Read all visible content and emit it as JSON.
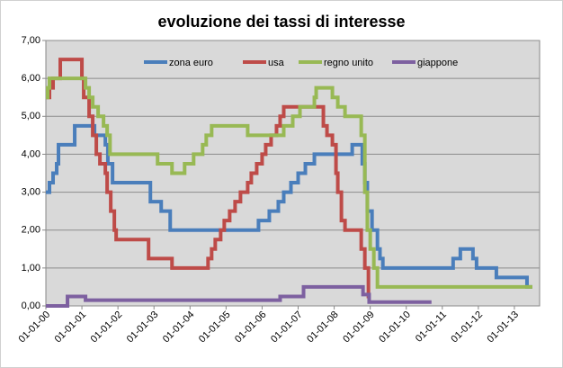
{
  "chart_data": {
    "type": "step-line",
    "title": "evoluzione dei tassi di interesse",
    "xlim": [
      2000,
      2013.7
    ],
    "ylim": [
      0,
      7
    ],
    "xticks": [
      {
        "value": 2000,
        "label": "01-01-00"
      },
      {
        "value": 2001,
        "label": "01-01-01"
      },
      {
        "value": 2002,
        "label": "01-01-02"
      },
      {
        "value": 2003,
        "label": "01-01-03"
      },
      {
        "value": 2004,
        "label": "01-01-04"
      },
      {
        "value": 2005,
        "label": "01-01-05"
      },
      {
        "value": 2006,
        "label": "01-01-06"
      },
      {
        "value": 2007,
        "label": "01-01-07"
      },
      {
        "value": 2008,
        "label": "01-01-08"
      },
      {
        "value": 2009,
        "label": "01-01-09"
      },
      {
        "value": 2010,
        "label": "01-01-10"
      },
      {
        "value": 2011,
        "label": "01-01-11"
      },
      {
        "value": 2012,
        "label": "01-01-12"
      },
      {
        "value": 2013,
        "label": "01-01-13"
      }
    ],
    "yticks": [
      {
        "value": 0,
        "label": "0,00"
      },
      {
        "value": 1,
        "label": "1,00"
      },
      {
        "value": 2,
        "label": "2,00"
      },
      {
        "value": 3,
        "label": "3,00"
      },
      {
        "value": 4,
        "label": "4,00"
      },
      {
        "value": 5,
        "label": "5,00"
      },
      {
        "value": 6,
        "label": "6,00"
      },
      {
        "value": 7,
        "label": "7,00"
      }
    ],
    "grid": true,
    "legend": "top",
    "series": [
      {
        "name": "zona euro",
        "color": "#4a7ebb",
        "x": [
          2000.0,
          2000.1,
          2000.2,
          2000.3,
          2000.35,
          2000.8,
          2001.35,
          2001.65,
          2001.72,
          2001.85,
          2002.9,
          2003.2,
          2003.45,
          2005.9,
          2006.2,
          2006.45,
          2006.6,
          2006.8,
          2007.0,
          2007.2,
          2007.45,
          2008.5,
          2008.78,
          2008.85,
          2008.92,
          2009.05,
          2009.2,
          2009.27,
          2009.35,
          2011.3,
          2011.5,
          2011.85,
          2011.95,
          2012.5,
          2013.35,
          2013.5
        ],
        "values": [
          3.0,
          3.25,
          3.5,
          3.75,
          4.25,
          4.75,
          4.5,
          4.25,
          3.75,
          3.25,
          2.75,
          2.5,
          2.0,
          2.25,
          2.5,
          2.75,
          3.0,
          3.25,
          3.5,
          3.75,
          4.0,
          4.25,
          3.75,
          3.25,
          2.5,
          2.0,
          1.5,
          1.25,
          1.0,
          1.25,
          1.5,
          1.25,
          1.0,
          0.75,
          0.5,
          0.5
        ]
      },
      {
        "name": "usa",
        "color": "#be4b48",
        "x": [
          2000.0,
          2000.1,
          2000.2,
          2000.4,
          2001.0,
          2001.05,
          2001.2,
          2001.3,
          2001.4,
          2001.5,
          2001.65,
          2001.7,
          2001.8,
          2001.9,
          2001.95,
          2002.85,
          2003.5,
          2004.5,
          2004.6,
          2004.7,
          2004.85,
          2004.95,
          2005.1,
          2005.25,
          2005.4,
          2005.6,
          2005.7,
          2005.85,
          2006.0,
          2006.1,
          2006.25,
          2006.4,
          2006.5,
          2006.6,
          2007.7,
          2007.8,
          2007.95,
          2008.05,
          2008.1,
          2008.2,
          2008.3,
          2008.75,
          2008.85,
          2008.95,
          2009.0
        ],
        "values": [
          5.5,
          5.75,
          6.0,
          6.5,
          6.0,
          5.5,
          5.0,
          4.5,
          4.0,
          3.75,
          3.5,
          3.0,
          2.5,
          2.0,
          1.75,
          1.25,
          1.0,
          1.25,
          1.5,
          1.75,
          2.0,
          2.25,
          2.5,
          2.75,
          3.0,
          3.25,
          3.5,
          3.75,
          4.0,
          4.25,
          4.5,
          4.75,
          5.0,
          5.25,
          4.75,
          4.5,
          4.25,
          3.5,
          3.0,
          2.25,
          2.0,
          1.5,
          1.0,
          0.25,
          0.25
        ]
      },
      {
        "name": "regno unito",
        "color": "#98b954",
        "x": [
          2000.0,
          2000.05,
          2000.1,
          2001.1,
          2001.2,
          2001.3,
          2001.45,
          2001.6,
          2001.7,
          2001.78,
          2003.1,
          2003.5,
          2003.85,
          2004.1,
          2004.35,
          2004.45,
          2004.6,
          2005.6,
          2006.6,
          2006.85,
          2007.05,
          2007.45,
          2007.5,
          2007.95,
          2008.1,
          2008.3,
          2008.75,
          2008.85,
          2008.92,
          2009.0,
          2009.1,
          2009.2,
          2013.5
        ],
        "values": [
          5.5,
          5.75,
          6.0,
          5.75,
          5.5,
          5.25,
          5.0,
          4.75,
          4.5,
          4.0,
          3.75,
          3.5,
          3.75,
          4.0,
          4.25,
          4.5,
          4.75,
          4.5,
          4.75,
          5.0,
          5.25,
          5.5,
          5.75,
          5.5,
          5.25,
          5.0,
          4.5,
          3.0,
          2.0,
          1.5,
          1.0,
          0.5,
          0.5
        ]
      },
      {
        "name": "giappone",
        "color": "#7d60a0",
        "x": [
          2000.0,
          2000.6,
          2001.1,
          2006.5,
          2007.15,
          2008.8,
          2008.97,
          2010.7
        ],
        "values": [
          0.0,
          0.25,
          0.15,
          0.25,
          0.5,
          0.3,
          0.1,
          0.1
        ]
      }
    ]
  }
}
